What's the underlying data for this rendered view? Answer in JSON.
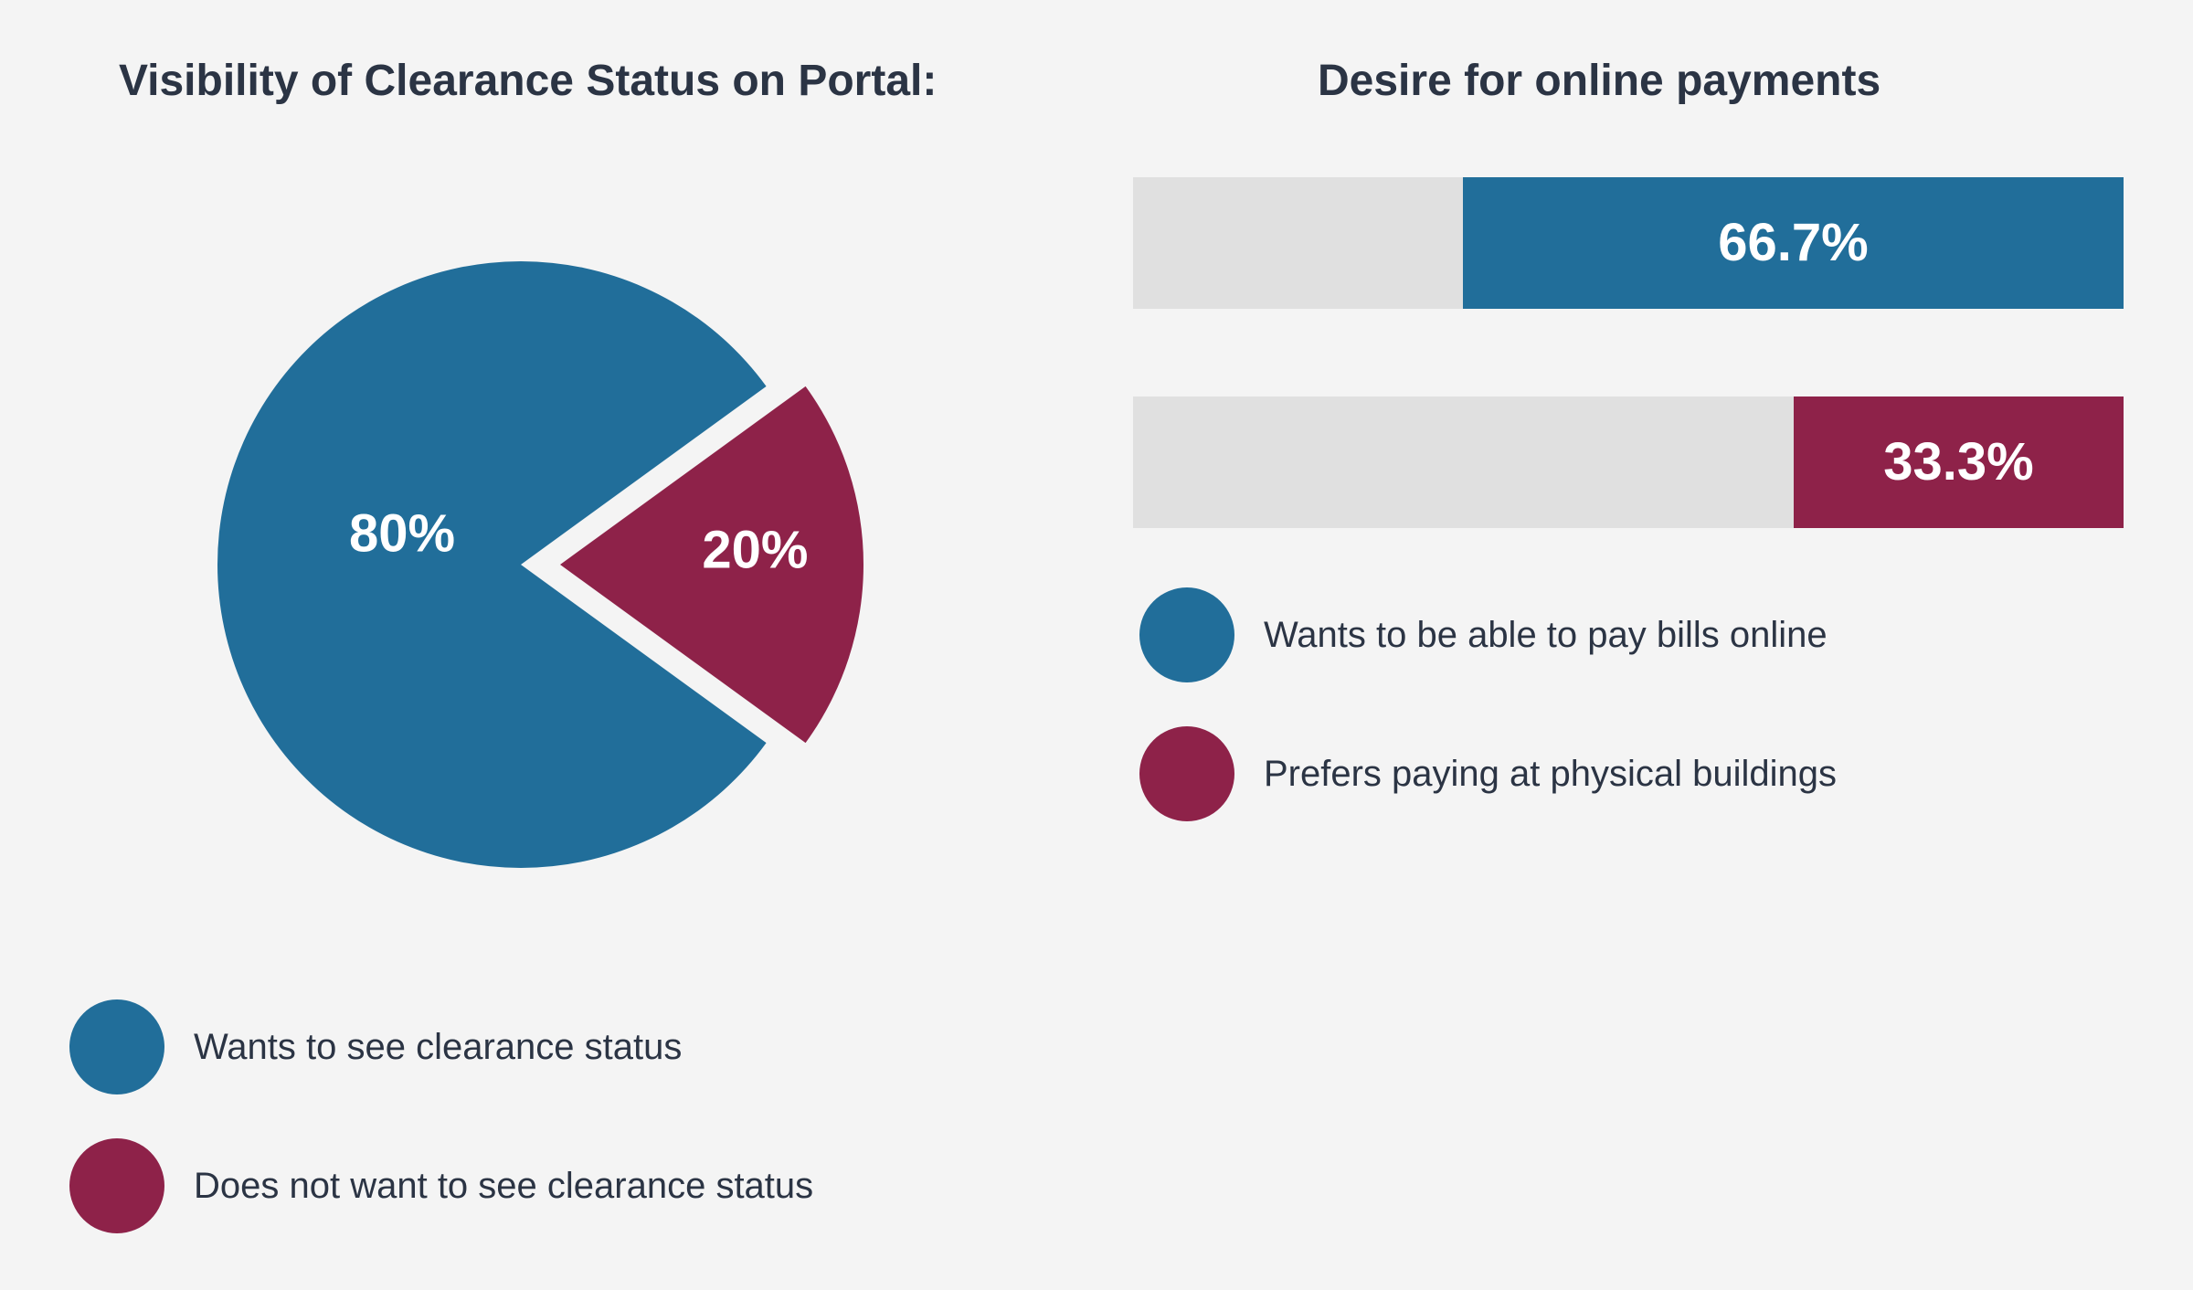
{
  "colors": {
    "background": "#f4f4f4",
    "blue": "#216e9a",
    "maroon": "#8e2249",
    "track": "#e0e0e0",
    "text": "#2b3444"
  },
  "chart_data": [
    {
      "type": "pie",
      "title": "Visibility of Clearance Status on Portal:",
      "series": [
        {
          "name": "Wants to see clearance status",
          "value": 80,
          "label": "80%",
          "color": "#216e9a",
          "exploded": false
        },
        {
          "name": "Does not want to see clearance status",
          "value": 20,
          "label": "20%",
          "color": "#8e2249",
          "exploded": true
        }
      ],
      "legend": {
        "position": "bottom-left",
        "items": [
          "Wants to see clearance status",
          "Does not want to see clearance status"
        ]
      }
    },
    {
      "type": "bar",
      "orientation": "horizontal",
      "title": "Desire for online payments",
      "categories": [
        "Wants to be able to pay bills online",
        "Prefers paying at physical buildings"
      ],
      "values": [
        66.7,
        33.3
      ],
      "labels": [
        "66.7%",
        "33.3%"
      ],
      "colors": [
        "#216e9a",
        "#8e2249"
      ],
      "xlim": [
        0,
        100
      ],
      "grid": false,
      "legend": {
        "position": "bottom",
        "items": [
          "Wants to be able to pay bills online",
          "Prefers paying at physical buildings"
        ]
      }
    }
  ]
}
